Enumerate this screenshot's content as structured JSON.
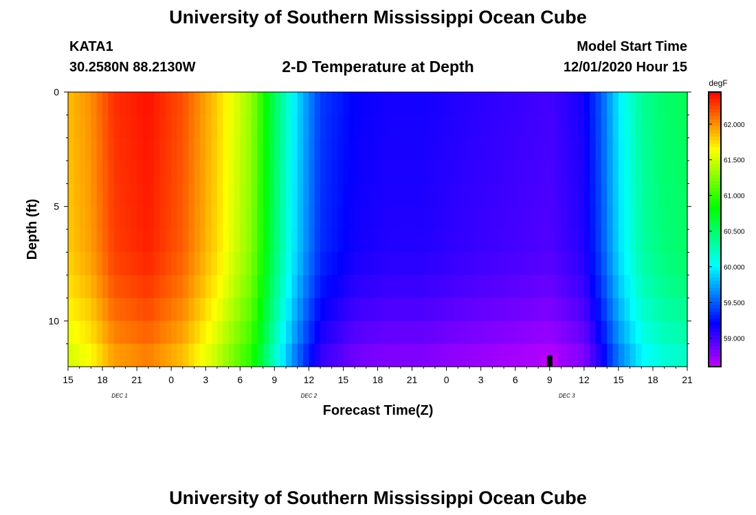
{
  "page": {
    "title_top": "University of Southern Mississippi Ocean Cube",
    "title_bottom": "University of Southern Mississippi Ocean Cube",
    "station_id": "KATA1",
    "station_coords": "30.2580N 88.2130W",
    "plot_title": "2-D Temperature at Depth",
    "model_start_label": "Model Start Time",
    "model_start_value": "12/01/2020 Hour 15"
  },
  "chart_data": {
    "type": "heatmap",
    "title": "2-D Temperature at Depth",
    "xlabel": "Forecast Time(Z)",
    "ylabel": "Depth (ft)",
    "x_range_hours": [
      0,
      54
    ],
    "y_range_ft": [
      0,
      12
    ],
    "x_tick_hours": [
      0,
      3,
      6,
      9,
      12,
      15,
      18,
      21,
      24,
      27,
      30,
      33,
      36,
      39,
      42,
      45,
      48,
      51,
      54
    ],
    "x_tick_labels": [
      "15",
      "18",
      "21",
      "0",
      "3",
      "6",
      "9",
      "12",
      "15",
      "18",
      "21",
      "0",
      "3",
      "6",
      "9",
      "12",
      "15",
      "18",
      "21"
    ],
    "y_ticks": [
      0,
      5,
      10
    ],
    "y_tick_labels": [
      "0",
      "5",
      "10"
    ],
    "date_labels": [
      {
        "text": "DEC 1",
        "hour": 4.5
      },
      {
        "text": "DEC 2",
        "hour": 21
      },
      {
        "text": "DEC 3",
        "hour": 43.5
      }
    ],
    "colorbar": {
      "unit": "degF",
      "range": [
        58.6,
        62.45
      ],
      "ticks": [
        59.0,
        59.5,
        60.0,
        60.5,
        61.0,
        61.5,
        62.0
      ],
      "tick_labels": [
        "59.000",
        "59.500",
        "60.000",
        "60.500",
        "61.000",
        "61.500",
        "62.000"
      ]
    },
    "surface_temperature_by_hour": [
      {
        "h": 0,
        "t": 61.85
      },
      {
        "h": 2,
        "t": 62.0
      },
      {
        "h": 4,
        "t": 62.3
      },
      {
        "h": 7,
        "t": 62.4
      },
      {
        "h": 10,
        "t": 62.2
      },
      {
        "h": 13,
        "t": 61.8
      },
      {
        "h": 16,
        "t": 61.3
      },
      {
        "h": 18,
        "t": 60.55
      },
      {
        "h": 20,
        "t": 59.9
      },
      {
        "h": 22,
        "t": 59.4
      },
      {
        "h": 25,
        "t": 59.2
      },
      {
        "h": 28,
        "t": 59.15
      },
      {
        "h": 31,
        "t": 59.15
      },
      {
        "h": 34,
        "t": 59.1
      },
      {
        "h": 38,
        "t": 59.05
      },
      {
        "h": 42,
        "t": 59.0
      },
      {
        "h": 45,
        "t": 59.15
      },
      {
        "h": 46.5,
        "t": 59.5
      },
      {
        "h": 48,
        "t": 59.95
      },
      {
        "h": 50,
        "t": 60.35
      },
      {
        "h": 52,
        "t": 60.5
      },
      {
        "h": 54,
        "t": 60.55
      }
    ],
    "depth_cooling_degF": [
      {
        "depth": 0,
        "d": 0
      },
      {
        "depth": 7,
        "d": 0.05
      },
      {
        "depth": 9,
        "d": 0.15
      },
      {
        "depth": 11,
        "d": 0.3
      },
      {
        "depth": 12,
        "d": 0.4
      }
    ],
    "min_cell": {
      "hour": 42,
      "depth": 11.5,
      "t": 58.6
    }
  }
}
